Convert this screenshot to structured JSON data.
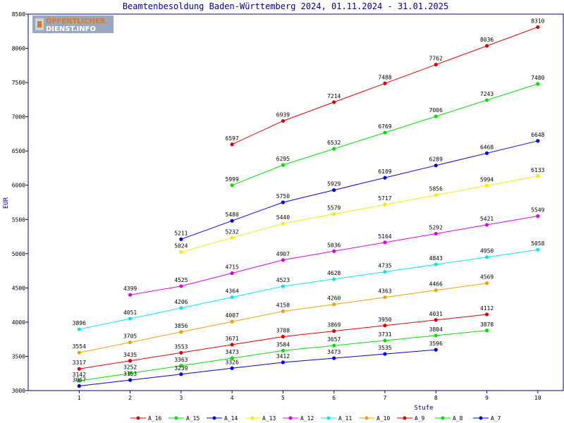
{
  "logo": {
    "line1": "ÖFFENTLICHER",
    "line2": "DIENST.INFO",
    "colors": {
      "background": "#9aa8be",
      "primary": "#e07818",
      "secondary": "#ffffff"
    }
  },
  "chart_data": {
    "type": "line",
    "title": "Beamtenbesoldung Baden-Württemberg 2024, 01.11.2024 - 31.01.2025",
    "xlabel": "Stufe",
    "ylabel": "EUR",
    "x_ticks": [
      1,
      2,
      3,
      4,
      5,
      6,
      7,
      8,
      9,
      10
    ],
    "xlim": [
      0,
      10.5
    ],
    "ylim": [
      3000,
      8500
    ],
    "y_ticks": [
      3000,
      3500,
      4000,
      4500,
      5000,
      5500,
      6000,
      6500,
      7000,
      7500,
      8000,
      8500
    ],
    "grid": false,
    "legend_position": "bottom",
    "axis_color": "#000080",
    "series": [
      {
        "name": "A_16",
        "color": "#e00000",
        "x": [
          4,
          5,
          6,
          7,
          8,
          9,
          10
        ],
        "values": [
          6597,
          6939,
          7214,
          7488,
          7762,
          8036,
          8310
        ]
      },
      {
        "name": "A_15",
        "color": "#00e000",
        "x": [
          4,
          5,
          6,
          7,
          8,
          9,
          10
        ],
        "values": [
          5999,
          6295,
          6532,
          6769,
          7006,
          7243,
          7480
        ]
      },
      {
        "name": "A_14",
        "color": "#0000e0",
        "x": [
          3,
          4,
          5,
          6,
          7,
          8,
          9,
          10
        ],
        "values": [
          5211,
          5480,
          5750,
          5929,
          6109,
          6289,
          6468,
          6648
        ]
      },
      {
        "name": "A_13",
        "color": "#f0f000",
        "x": [
          3,
          4,
          5,
          6,
          7,
          8,
          9,
          10
        ],
        "values": [
          5024,
          5232,
          5440,
          5579,
          5717,
          5856,
          5994,
          6133
        ]
      },
      {
        "name": "A_12",
        "color": "#e000e0",
        "x": [
          2,
          3,
          4,
          5,
          6,
          7,
          8,
          9,
          10
        ],
        "values": [
          4399,
          4525,
          4715,
          4907,
          5036,
          5164,
          5292,
          5421,
          5549
        ]
      },
      {
        "name": "A_11",
        "color": "#00e8e8",
        "x": [
          1,
          2,
          3,
          4,
          5,
          6,
          7,
          8,
          9,
          10
        ],
        "values": [
          3896,
          4051,
          4206,
          4364,
          4523,
          4628,
          4735,
          4843,
          4950,
          5058
        ]
      },
      {
        "name": "A_10",
        "color": "#f0a000",
        "x": [
          1,
          2,
          3,
          4,
          5,
          6,
          7,
          8,
          9
        ],
        "values": [
          3554,
          3705,
          3856,
          4007,
          4158,
          4260,
          4363,
          4466,
          4569
        ]
      },
      {
        "name": "A_9",
        "color": "#e00000",
        "x": [
          1,
          2,
          3,
          4,
          5,
          6,
          7,
          8,
          9
        ],
        "values": [
          3317,
          3435,
          3553,
          3671,
          3788,
          3869,
          3950,
          4031,
          4112
        ]
      },
      {
        "name": "A_8",
        "color": "#00e000",
        "x": [
          1,
          2,
          3,
          4,
          5,
          6,
          7,
          8,
          9
        ],
        "values": [
          3142,
          3252,
          3363,
          3473,
          3584,
          3657,
          3731,
          3804,
          3878
        ]
      },
      {
        "name": "A_7",
        "color": "#0000e0",
        "x": [
          1,
          2,
          3,
          4,
          5,
          6,
          7,
          8
        ],
        "values": [
          3067,
          3153,
          3239,
          3326,
          3412,
          3473,
          3535,
          3596
        ]
      }
    ]
  }
}
